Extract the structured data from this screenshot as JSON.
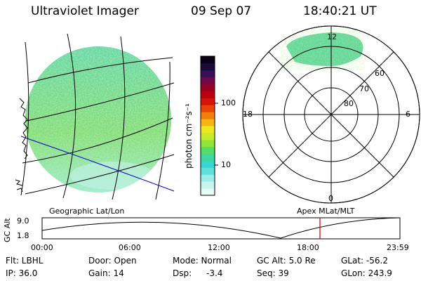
{
  "header": {
    "instrument": "Ultraviolet Imager",
    "date": "09 Sep 07",
    "time": "18:40:21 UT"
  },
  "colorbar": {
    "unit_label": "photon cm⁻²s⁻¹",
    "ticks": [
      {
        "label": "100",
        "value": 100
      },
      {
        "label": "10",
        "value": 10
      }
    ],
    "colors": [
      "#e6fbf6",
      "#c8f4ef",
      "#9decea",
      "#5fe0de",
      "#38d6d0",
      "#3fd79f",
      "#55dd6a",
      "#8ee43a",
      "#c7ea2a",
      "#eee81f",
      "#f6b512",
      "#f27f0c",
      "#e7450a",
      "#d61408",
      "#bb0012",
      "#990028",
      "#6e0a4c",
      "#3a0f5a",
      "#1a0a3a",
      "#0b0018"
    ]
  },
  "left_panel": {
    "label": "Geographic Lat/Lon"
  },
  "polar": {
    "label": "Apex MLat/MLT",
    "mlt_labels": {
      "top": "12",
      "left": "18",
      "right": "6",
      "bottom": "0"
    },
    "lat_labels": [
      "60",
      "70",
      "80"
    ]
  },
  "timeline": {
    "axis_label": "GC Alt",
    "y_ticks": [
      "9.0",
      "1.8"
    ],
    "x_ticks": [
      "00:00",
      "06:00",
      "12:00",
      "18:00",
      "23:59"
    ],
    "current_time_hours": 18.67,
    "current_marker_color": "#cc0000"
  },
  "status": {
    "filter": "Flt: LBHL",
    "door": "Door: Open",
    "mode": "Mode: Normal",
    "gc_alt": "GC Alt: 5.0 Re",
    "glat": "GLat: -56.2",
    "ip": "IP: 36.0",
    "gain": "Gain: 14",
    "dsp_label": "Dsp:",
    "dsp_value": "-3.4",
    "seq": "Seq: 39",
    "glon": "GLon: 243.9"
  }
}
